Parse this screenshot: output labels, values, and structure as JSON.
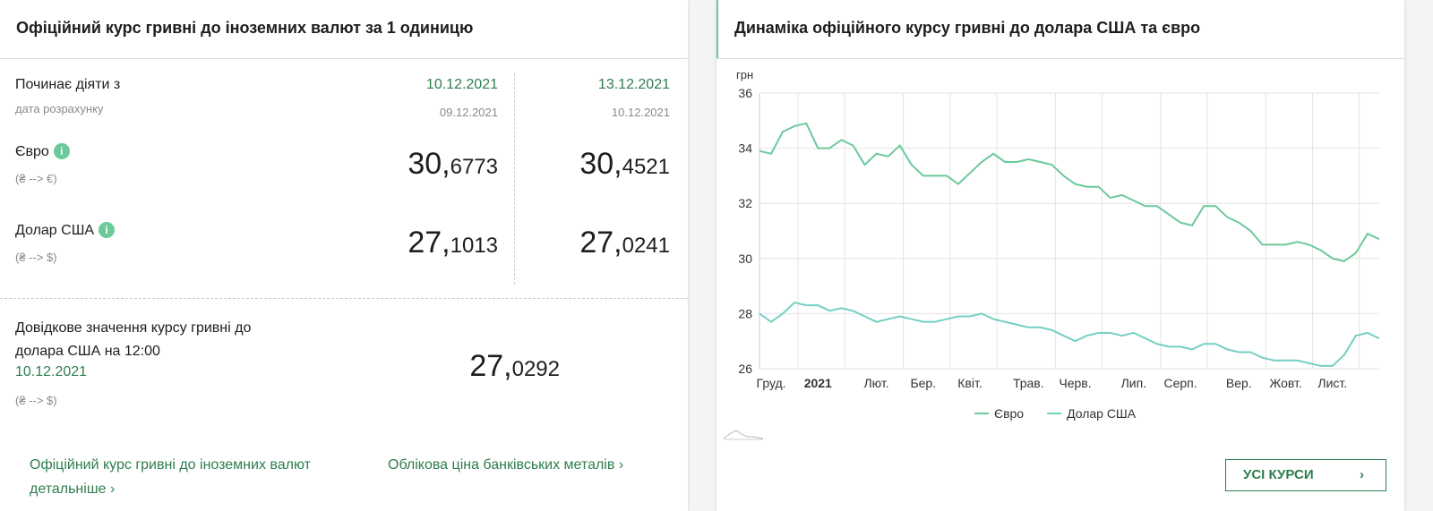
{
  "rates": {
    "title": "Офіційний курс гривні до іноземних валют за 1 одиницю",
    "starts_label": "Починає діяти з",
    "calc_label": "дата розрахунку",
    "currencies": [
      {
        "name": "Євро",
        "direction": "(₴ --> €)"
      },
      {
        "name": "Долар США",
        "direction": "(₴ --> $)"
      }
    ],
    "columns": [
      {
        "date": "10.12.2021",
        "calc_date": "09.12.2021",
        "values": [
          "30,6773",
          "27,1013"
        ]
      },
      {
        "date": "13.12.2021",
        "calc_date": "10.12.2021",
        "values": [
          "30,4521",
          "27,0241"
        ]
      }
    ]
  },
  "reference": {
    "label": "Довідкове значення курсу гривні до долара США на 12:00",
    "date": "10.12.2021",
    "direction": "(₴ --> $)",
    "value": "27,0292"
  },
  "links": [
    "Офіційний курс гривні до іноземних валют детальніше",
    "Облікова ціна банківських металів"
  ],
  "chart_panel": {
    "button": "УСІ КУРСИ"
  },
  "chart_data": {
    "type": "line",
    "title": "Динаміка офіційного курсу гривні до долара США та євро",
    "y_label": "грн",
    "categories": [
      null,
      "Груд.",
      null,
      null,
      null,
      "2021",
      null,
      null,
      null,
      null,
      "Лют.",
      null,
      null,
      null,
      "Бер.",
      null,
      null,
      null,
      "Квіт.",
      null,
      null,
      null,
      null,
      "Трав.",
      null,
      null,
      null,
      "Черв.",
      null,
      null,
      null,
      null,
      "Лип.",
      null,
      null,
      null,
      "Серп.",
      null,
      null,
      null,
      null,
      "Вер.",
      null,
      null,
      null,
      "Жовт.",
      null,
      null,
      null,
      "Лист.",
      null,
      null,
      null,
      null
    ],
    "series": [
      {
        "name": "Євро",
        "color": "#6cc99a",
        "values": [
          33.9,
          33.8,
          34.6,
          34.8,
          34.9,
          34.0,
          34.0,
          34.3,
          34.1,
          33.4,
          33.8,
          33.7,
          34.1,
          33.4,
          33.0,
          33.0,
          33.0,
          32.7,
          33.1,
          33.5,
          33.8,
          33.5,
          33.5,
          33.6,
          33.5,
          33.4,
          33.0,
          32.7,
          32.6,
          32.6,
          32.2,
          32.3,
          32.1,
          31.9,
          31.9,
          31.6,
          31.3,
          31.2,
          31.9,
          31.9,
          31.5,
          31.3,
          31.0,
          30.5,
          30.5,
          30.5,
          30.6,
          30.5,
          30.3,
          30.0,
          29.9,
          30.2,
          30.9,
          30.7
        ]
      },
      {
        "name": "Долар США",
        "color": "#74cfc3",
        "values": [
          28.0,
          27.7,
          28.0,
          28.4,
          28.3,
          28.3,
          28.1,
          28.2,
          28.1,
          27.9,
          27.7,
          27.8,
          27.9,
          27.8,
          27.7,
          27.7,
          27.8,
          27.9,
          27.9,
          28.0,
          27.8,
          27.7,
          27.6,
          27.5,
          27.5,
          27.4,
          27.2,
          27.0,
          27.2,
          27.3,
          27.3,
          27.2,
          27.3,
          27.1,
          26.9,
          26.8,
          26.8,
          26.7,
          26.9,
          26.9,
          26.7,
          26.6,
          26.6,
          26.4,
          26.3,
          26.3,
          26.3,
          26.2,
          26.1,
          26.1,
          26.5,
          27.2,
          27.3,
          27.1
        ]
      }
    ],
    "ylim": [
      26,
      36
    ],
    "yticks": [
      26,
      28,
      30,
      32,
      34,
      36
    ],
    "grid": true,
    "legend": "bottom",
    "bold_categories": [
      "2021"
    ]
  }
}
